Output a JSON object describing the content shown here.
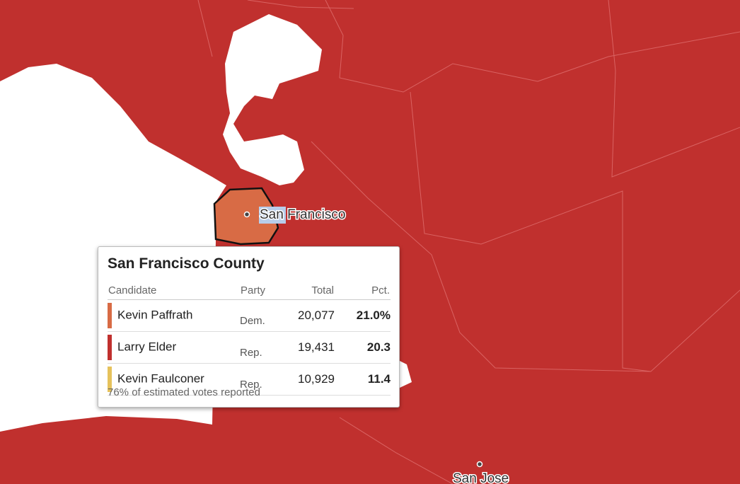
{
  "map": {
    "labels": [
      {
        "name": "San Francisco"
      },
      {
        "name": "San Jose"
      }
    ]
  },
  "tooltip": {
    "title": "San Francisco County",
    "columns": [
      "Candidate",
      "Party",
      "Total",
      "Pct."
    ],
    "rows": [
      [
        "Kevin Paffrath",
        "Dem.",
        "20,077",
        "21.0%"
      ],
      [
        "Larry Elder",
        "Rep.",
        "19,431",
        "20.3"
      ],
      [
        "Kevin Faulconer",
        "Rep.",
        "10,929",
        "11.4"
      ]
    ],
    "row_colors": [
      "#d86b45",
      "#c0302e",
      "#e6c25c"
    ],
    "footnote": "76% of estimated votes reported"
  }
}
